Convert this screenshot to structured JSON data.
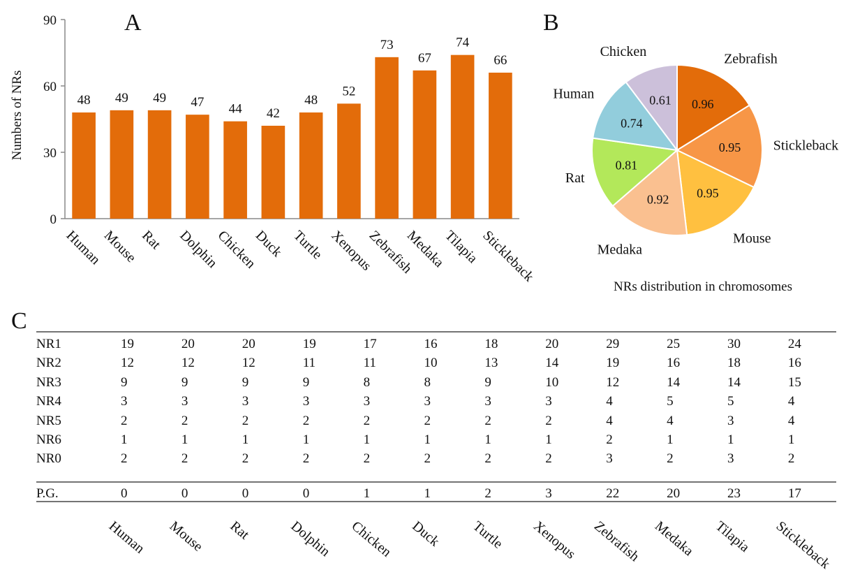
{
  "panels": {
    "a": "A",
    "b": "B",
    "c": "C"
  },
  "bar_color": "#E36C0A",
  "chart_data": [
    {
      "type": "bar",
      "title": "",
      "xlabel": "",
      "ylabel": "Numbers of NRs",
      "ylim": [
        0,
        90
      ],
      "yticks": [
        0,
        30,
        60,
        90
      ],
      "grid": false,
      "categories": [
        "Human",
        "Mouse",
        "Rat",
        "Dolphin",
        "Chicken",
        "Duck",
        "Turtle",
        "Xenopus",
        "Zebrafish",
        "Medaka",
        "Tilapia",
        "Stickleback"
      ],
      "values": [
        48,
        49,
        49,
        47,
        44,
        42,
        48,
        52,
        73,
        67,
        74,
        66
      ]
    },
    {
      "type": "pie",
      "caption": "NRs distribution in chromosomes",
      "slices": [
        {
          "label": "Zebrafish",
          "value": 0.96,
          "color": "#E36C0A"
        },
        {
          "label": "Stickleback",
          "value": 0.95,
          "color": "#F79646"
        },
        {
          "label": "Mouse",
          "value": 0.95,
          "color": "#FFC040"
        },
        {
          "label": "Medaka",
          "value": 0.92,
          "color": "#FAC090"
        },
        {
          "label": "Rat",
          "value": 0.81,
          "color": "#B3E85A"
        },
        {
          "label": "Human",
          "value": 0.74,
          "color": "#92CDDC"
        },
        {
          "label": "Chicken",
          "value": 0.61,
          "color": "#CCC0DA"
        }
      ]
    },
    {
      "type": "table",
      "columns": [
        "Human",
        "Mouse",
        "Rat",
        "Dolphin",
        "Chicken",
        "Duck",
        "Turtle",
        "Xenopus",
        "Zebrafish",
        "Medaka",
        "Tilapia",
        "Stickleback"
      ],
      "rows": [
        {
          "label": "NR1",
          "values": [
            19,
            20,
            20,
            19,
            17,
            16,
            18,
            20,
            29,
            25,
            30,
            24
          ]
        },
        {
          "label": "NR2",
          "values": [
            12,
            12,
            12,
            11,
            11,
            10,
            13,
            14,
            19,
            16,
            18,
            16
          ]
        },
        {
          "label": "NR3",
          "values": [
            9,
            9,
            9,
            9,
            8,
            8,
            9,
            10,
            12,
            14,
            14,
            15
          ]
        },
        {
          "label": "NR4",
          "values": [
            3,
            3,
            3,
            3,
            3,
            3,
            3,
            3,
            4,
            5,
            5,
            4
          ]
        },
        {
          "label": "NR5",
          "values": [
            2,
            2,
            2,
            2,
            2,
            2,
            2,
            2,
            4,
            4,
            3,
            4
          ]
        },
        {
          "label": "NR6",
          "values": [
            1,
            1,
            1,
            1,
            1,
            1,
            1,
            1,
            2,
            1,
            1,
            1
          ]
        },
        {
          "label": "NR0",
          "values": [
            2,
            2,
            2,
            2,
            2,
            2,
            2,
            2,
            3,
            2,
            3,
            2
          ]
        },
        {
          "label": "P.G.",
          "values": [
            0,
            0,
            0,
            0,
            1,
            1,
            2,
            3,
            22,
            20,
            23,
            17
          ]
        }
      ]
    }
  ]
}
